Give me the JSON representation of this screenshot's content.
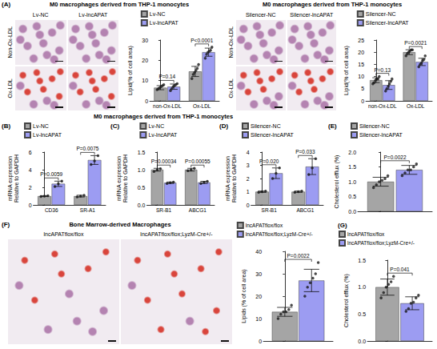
{
  "section_title": "M0 macrophages derived from THP-1 monocytes",
  "image_panels": [
    {
      "letter": "(A)",
      "title": "M0 macrophages derived from THP-1 monocytes",
      "columns": [
        "Lv-NC",
        "Lv-lncAPAT"
      ],
      "rows": [
        "Non-Ox-LDL",
        "Ox-LDL"
      ]
    },
    {
      "title": "M0 macrophages derived from THP-1 monocytes",
      "columns": [
        "Silencer-NC",
        "Silencer-lncAPAT"
      ],
      "rows": [
        "Non-Ox-LDL",
        "Ox-LDL"
      ]
    },
    {
      "letter": "(F)",
      "title": "Bone Marrow-derived Macrophages",
      "columns": [
        "lncAPATflox/flox",
        "lncAPATflox/flox;LyzM-Cre+/-"
      ],
      "rows": []
    }
  ],
  "chart_data": [
    {
      "type": "bar",
      "ylabel": "Lipid(% of cell area)",
      "categories": [
        "non-Ox-LDL",
        "Ox-LDL"
      ],
      "ylim": [
        0,
        30
      ],
      "yticks": [
        0,
        10,
        20,
        30
      ],
      "grid": false,
      "legend": "top",
      "series": [
        {
          "name": "Lv-NC",
          "color": "#a5a5a5",
          "values": [
            6.5,
            14.5
          ],
          "errors": [
            1.0,
            2.5
          ],
          "points": [
            [
              5.5,
              6,
              6.5,
              7,
              7.5,
              8
            ],
            [
              11,
              13,
              14,
              15,
              16,
              18
            ]
          ]
        },
        {
          "name": "Lv-lncAPAT",
          "color": "#9c9cf2",
          "values": [
            7,
            24
          ],
          "errors": [
            1.3,
            2.0
          ],
          "points": [
            [
              5,
              6,
              7,
              7.5,
              8,
              8.5
            ],
            [
              21,
              23,
              24,
              24.5,
              25,
              26.5
            ]
          ]
        }
      ],
      "annotations": [
        "P=0.14",
        "P<0.0001"
      ]
    },
    {
      "type": "bar",
      "ylabel": "Lipid(% of cell area)",
      "categories": [
        "non-Ox-LDL",
        "Ox-LDL"
      ],
      "ylim": [
        0,
        25
      ],
      "yticks": [
        0,
        5,
        10,
        15,
        20,
        25
      ],
      "grid": false,
      "legend": "top",
      "series": [
        {
          "name": "Silencer-NC",
          "color": "#a5a5a5",
          "values": [
            8.5,
            20
          ],
          "errors": [
            1.0,
            1.0
          ],
          "points": [
            [
              7,
              7.5,
              8.5,
              9,
              9,
              10
            ],
            [
              18.5,
              19.5,
              20,
              20.5,
              21,
              21
            ]
          ]
        },
        {
          "name": "Silencer-lncAPAT",
          "color": "#9c9cf2",
          "values": [
            6.5,
            16
          ],
          "errors": [
            1.8,
            1.5
          ],
          "points": [
            [
              4,
              5,
              6,
              7,
              8,
              9
            ],
            [
              14,
              15,
              15.5,
              16.5,
              17,
              18.5
            ]
          ]
        }
      ],
      "annotations": [
        "P=0.13",
        "P=0.0021"
      ]
    },
    {
      "type": "bar",
      "letter": "(B)",
      "ylabel": "mRNA expression\nRelative to GAPDH",
      "categories": [
        "CD36",
        "SR-A1"
      ],
      "ylim": [
        0,
        6
      ],
      "yticks": [
        0,
        2,
        4,
        6
      ],
      "grid": false,
      "legend": "top",
      "series": [
        {
          "name": "Lv-NC",
          "color": "#a5a5a5",
          "values": [
            1.0,
            1.0
          ],
          "errors": [
            0.05,
            0.1
          ],
          "points": [
            [
              0.95,
              1,
              1.05
            ],
            [
              0.9,
              1,
              1.1
            ]
          ]
        },
        {
          "name": "Lv-lncAPAT",
          "color": "#9c9cf2",
          "values": [
            2.4,
            5.1
          ],
          "errors": [
            0.3,
            0.5
          ],
          "points": [
            [
              2.1,
              2.4,
              2.7
            ],
            [
              4.6,
              5,
              5.6
            ]
          ]
        }
      ],
      "annotations": [
        "P=0.0059",
        "P=0.0075"
      ]
    },
    {
      "type": "bar",
      "letter": "(C)",
      "ylabel": "mRNA expression\nRelative to GAPDH",
      "categories": [
        "SR-B1",
        "ABCG1"
      ],
      "ylim": [
        0,
        1.5
      ],
      "yticks": [
        {
          "value": 0,
          "label": "0.0"
        },
        {
          "value": 0.5,
          "label": "0.5"
        },
        {
          "value": 1,
          "label": "1.0"
        },
        {
          "value": 1.5,
          "label": "1.5"
        }
      ],
      "grid": false,
      "legend": "top",
      "series": [
        {
          "name": "Lv-NC",
          "color": "#a5a5a5",
          "values": [
            1.0,
            1.0
          ],
          "errors": [
            0.04,
            0.04
          ],
          "points": [
            [
              0.95,
              1,
              1.03
            ],
            [
              0.97,
              1,
              1.04
            ]
          ]
        },
        {
          "name": "Lv-lncAPAT",
          "color": "#9c9cf2",
          "values": [
            0.63,
            0.64
          ],
          "errors": [
            0.02,
            0.03
          ],
          "points": [
            [
              0.61,
              0.63,
              0.65
            ],
            [
              0.61,
              0.64,
              0.67
            ]
          ]
        }
      ],
      "annotations": [
        "P=0.00034",
        "P=0.00055"
      ]
    },
    {
      "type": "bar",
      "letter": "(D)",
      "ylabel": "mRNA expression\nRelative to GAPDH",
      "categories": [
        "SR-B1",
        "ABCG1"
      ],
      "ylim": [
        0,
        4
      ],
      "yticks": [
        0,
        1,
        2,
        3,
        4
      ],
      "grid": false,
      "legend": "top",
      "series": [
        {
          "name": "Silencer-NC",
          "color": "#a5a5a5",
          "values": [
            1.0,
            1.0
          ],
          "errors": [
            0.05,
            0.05
          ],
          "points": [
            [
              0.95,
              1,
              1.05
            ],
            [
              0.95,
              1,
              1.05
            ]
          ]
        },
        {
          "name": "Silencer-lncAPAT",
          "color": "#9c9cf2",
          "values": [
            2.4,
            2.9
          ],
          "errors": [
            0.4,
            0.6
          ],
          "points": [
            [
              2.0,
              2.4,
              2.8
            ],
            [
              2.3,
              2.8,
              3.5
            ]
          ]
        }
      ],
      "annotations": [
        "P=0.020",
        "P=0.033"
      ]
    },
    {
      "type": "bar",
      "letter": "(E)",
      "ylabel": "Cholesterol efflux (%)",
      "categories": [
        null
      ],
      "ylim": [
        0,
        2
      ],
      "yticks": [
        {
          "value": 0,
          "label": "0.0"
        },
        {
          "value": 0.5,
          "label": "0.5"
        },
        {
          "value": 1,
          "label": "1.0"
        },
        {
          "value": 1.5,
          "label": "1.5"
        },
        {
          "value": 2,
          "label": "2.0"
        }
      ],
      "grid": false,
      "legend": "top",
      "series": [
        {
          "name": "Silencer-NC",
          "color": "#a5a5a5",
          "values": [
            1.0
          ],
          "errors": [
            0.15
          ],
          "points": [
            [
              0.8,
              0.9,
              1.0,
              1.05,
              1.1,
              1.2
            ]
          ]
        },
        {
          "name": "Silencer-lncAPAT",
          "color": "#9c9cf2",
          "values": [
            1.4
          ],
          "errors": [
            0.15
          ],
          "points": [
            [
              1.2,
              1.3,
              1.4,
              1.4,
              1.5,
              1.6
            ]
          ]
        }
      ],
      "annotations": [
        "P=0.0022"
      ]
    },
    {
      "type": "bar",
      "ylabel": "Lipids (% of cell area)",
      "categories": [
        null
      ],
      "ylim": [
        0,
        40
      ],
      "yticks": [
        0,
        10,
        20,
        30,
        40
      ],
      "grid": false,
      "legend": "top",
      "series": [
        {
          "name": "lncAPATflox/flox",
          "color": "#a5a5a5",
          "values": [
            13
          ],
          "errors": [
            2
          ],
          "points": [
            [
              10,
              12,
              13,
              13,
              14,
              16
            ]
          ]
        },
        {
          "name": "lncAPATflox/flox;LyzM-Cre+/-",
          "color": "#9c9cf2",
          "values": [
            27
          ],
          "errors": [
            5
          ],
          "points": [
            [
              20,
              24,
              26,
              28,
              30,
              35
            ]
          ]
        }
      ],
      "annotations": [
        "P=0.0022"
      ]
    },
    {
      "type": "bar",
      "letter": "(G)",
      "ylabel": "Cholesterol efflux (%)",
      "categories": [
        null
      ],
      "ylim": [
        0,
        1.5
      ],
      "yticks": [
        {
          "value": 0,
          "label": "0.0"
        },
        {
          "value": 0.5,
          "label": "0.5"
        },
        {
          "value": 1,
          "label": "1.0"
        },
        {
          "value": 1.5,
          "label": "1.5"
        }
      ],
      "grid": false,
      "legend": "top",
      "series": [
        {
          "name": "lncAPATflox/flox",
          "color": "#a5a5a5",
          "values": [
            1.0
          ],
          "errors": [
            0.15
          ],
          "points": [
            [
              0.8,
              0.9,
              1.0,
              1.05,
              1.1,
              1.2
            ]
          ]
        },
        {
          "name": "lncAPATflox/flox;LyzM-Cre+/-",
          "color": "#9c9cf2",
          "values": [
            0.7
          ],
          "errors": [
            0.12
          ],
          "points": [
            [
              0.55,
              0.6,
              0.7,
              0.72,
              0.8,
              0.85
            ]
          ]
        }
      ],
      "annotations": [
        "P=0.041"
      ]
    }
  ]
}
